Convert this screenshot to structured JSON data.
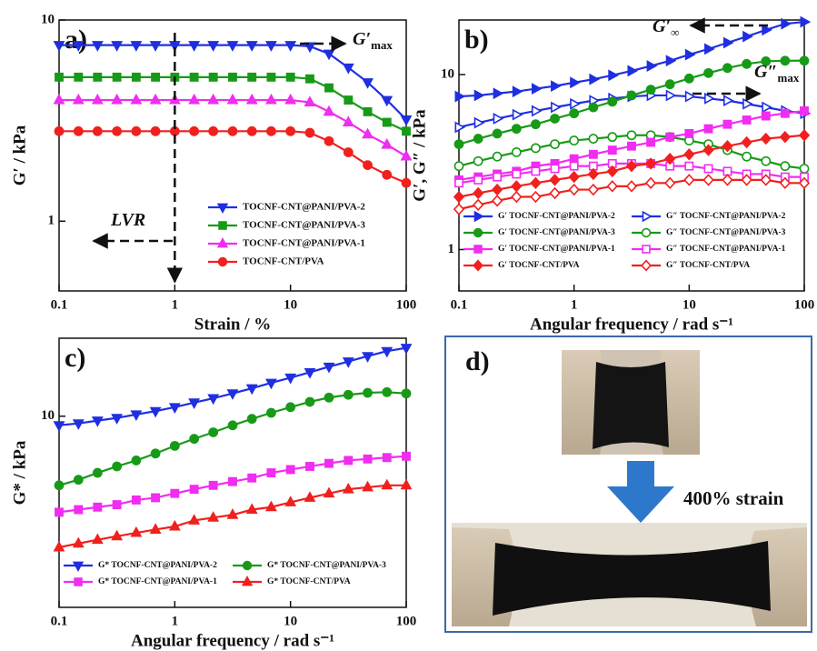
{
  "chart_data": [
    {
      "type": "line",
      "panel_label": "a)",
      "x_label": "Strain / %",
      "y_label": "G′ / kPa",
      "log_x": true,
      "log_y": true,
      "xlim": [
        0.1,
        100
      ],
      "xticks": [
        0.1,
        1,
        10,
        100
      ],
      "ylim": [
        0.45,
        10
      ],
      "yticks": [
        1,
        10
      ],
      "legend": "lower right",
      "legend_columns": 1,
      "x": [
        0.1,
        0.147,
        0.215,
        0.316,
        0.464,
        0.681,
        1,
        1.47,
        2.15,
        3.16,
        4.64,
        6.81,
        10,
        14.7,
        21.5,
        31.6,
        46.4,
        68.1,
        100
      ],
      "annotations": [
        {
          "text": "G′",
          "sub": "max"
        },
        {
          "text": "LVR"
        }
      ],
      "series": [
        {
          "name": "TOCNF-CNT@PANI/PVA-2",
          "color": "#1f2fe0",
          "marker": "triangle-down",
          "filled": true,
          "values": [
            7.5,
            7.5,
            7.5,
            7.5,
            7.5,
            7.5,
            7.5,
            7.5,
            7.5,
            7.5,
            7.5,
            7.5,
            7.5,
            7.4,
            6.8,
            5.8,
            4.9,
            4.0,
            3.2
          ]
        },
        {
          "name": "TOCNF-CNT@PANI/PVA-3",
          "color": "#179a17",
          "marker": "square",
          "filled": true,
          "values": [
            5.2,
            5.2,
            5.2,
            5.2,
            5.2,
            5.2,
            5.2,
            5.2,
            5.2,
            5.2,
            5.2,
            5.2,
            5.2,
            5.1,
            4.6,
            4.0,
            3.5,
            3.1,
            2.8
          ]
        },
        {
          "name": "TOCNF-CNT@PANI/PVA-1",
          "color": "#f02df0",
          "marker": "triangle-up",
          "filled": true,
          "values": [
            4.0,
            4.0,
            4.0,
            4.0,
            4.0,
            4.0,
            4.0,
            4.0,
            4.0,
            4.0,
            4.0,
            4.0,
            4.0,
            3.9,
            3.5,
            3.1,
            2.7,
            2.4,
            2.1
          ]
        },
        {
          "name": "TOCNF-CNT/PVA",
          "color": "#f0201e",
          "marker": "circle",
          "filled": true,
          "values": [
            2.8,
            2.8,
            2.8,
            2.8,
            2.8,
            2.8,
            2.8,
            2.8,
            2.8,
            2.8,
            2.8,
            2.8,
            2.8,
            2.75,
            2.5,
            2.2,
            1.9,
            1.7,
            1.55
          ]
        }
      ]
    },
    {
      "type": "line",
      "panel_label": "b)",
      "x_label": "Angular frequency / rad s⁻¹",
      "y_label": "G′, G″ / kPa",
      "log_x": true,
      "log_y": true,
      "xlim": [
        0.1,
        100
      ],
      "xticks": [
        0.1,
        1,
        10,
        100
      ],
      "ylim": [
        0.58,
        20.5
      ],
      "yticks": [
        1,
        10
      ],
      "legend": "lower center",
      "legend_columns": 2,
      "x": [
        0.1,
        0.147,
        0.215,
        0.316,
        0.464,
        0.681,
        1,
        1.47,
        2.15,
        3.16,
        4.64,
        6.81,
        10,
        14.7,
        21.5,
        31.6,
        46.4,
        68.1,
        100
      ],
      "annotations": [
        {
          "text": "G′",
          "sub": "∞"
        },
        {
          "text": "G″",
          "sub": "max"
        }
      ],
      "series": [
        {
          "name": "G′ TOCNF-CNT@PANI/PVA-2",
          "color": "#1f2fe0",
          "marker": "triangle-right",
          "filled": true,
          "values": [
            7.5,
            7.6,
            7.8,
            8.0,
            8.3,
            8.6,
            9.0,
            9.4,
            9.9,
            10.5,
            11.2,
            12.0,
            13.0,
            14.0,
            15.2,
            16.5,
            18.0,
            19.5,
            20.0
          ]
        },
        {
          "name": "G″ TOCNF-CNT@PANI/PVA-2",
          "color": "#1f2fe0",
          "marker": "triangle-right",
          "filled": false,
          "values": [
            5.0,
            5.3,
            5.6,
            5.9,
            6.2,
            6.5,
            6.8,
            7.1,
            7.3,
            7.5,
            7.6,
            7.6,
            7.5,
            7.3,
            7.1,
            6.8,
            6.5,
            6.2,
            6.0
          ]
        },
        {
          "name": "G′ TOCNF-CNT@PANI/PVA-3",
          "color": "#179a17",
          "marker": "circle",
          "filled": true,
          "values": [
            4.0,
            4.3,
            4.6,
            4.9,
            5.2,
            5.6,
            6.0,
            6.5,
            7.0,
            7.6,
            8.2,
            8.8,
            9.5,
            10.2,
            10.9,
            11.5,
            11.9,
            12.0,
            12.0
          ]
        },
        {
          "name": "G″ TOCNF-CNT@PANI/PVA-3",
          "color": "#179a17",
          "marker": "circle",
          "filled": false,
          "values": [
            3.0,
            3.2,
            3.4,
            3.6,
            3.8,
            4.0,
            4.2,
            4.3,
            4.4,
            4.5,
            4.5,
            4.4,
            4.2,
            4.0,
            3.7,
            3.4,
            3.2,
            3.0,
            2.9
          ]
        },
        {
          "name": "G′ TOCNF-CNT@PANI/PVA-1",
          "color": "#f02df0",
          "marker": "square",
          "filled": true,
          "values": [
            2.5,
            2.6,
            2.7,
            2.8,
            3.0,
            3.1,
            3.3,
            3.5,
            3.7,
            3.9,
            4.1,
            4.4,
            4.6,
            4.9,
            5.2,
            5.5,
            5.8,
            6.0,
            6.2
          ]
        },
        {
          "name": "G″ TOCNF-CNT@PANI/PVA-1",
          "color": "#f02df0",
          "marker": "square",
          "filled": false,
          "values": [
            2.4,
            2.5,
            2.6,
            2.7,
            2.8,
            2.9,
            3.0,
            3.0,
            3.1,
            3.1,
            3.1,
            3.0,
            3.0,
            2.9,
            2.8,
            2.7,
            2.7,
            2.6,
            2.6
          ]
        },
        {
          "name": "G′ TOCNF-CNT/PVA",
          "color": "#f0201e",
          "marker": "diamond",
          "filled": true,
          "values": [
            2.0,
            2.1,
            2.2,
            2.3,
            2.4,
            2.5,
            2.6,
            2.7,
            2.8,
            3.0,
            3.1,
            3.3,
            3.5,
            3.7,
            3.9,
            4.1,
            4.3,
            4.4,
            4.5
          ]
        },
        {
          "name": "G″ TOCNF-CNT/PVA",
          "color": "#f0201e",
          "marker": "diamond",
          "filled": false,
          "values": [
            1.7,
            1.8,
            1.9,
            2.0,
            2.0,
            2.1,
            2.2,
            2.2,
            2.3,
            2.3,
            2.4,
            2.4,
            2.5,
            2.5,
            2.5,
            2.5,
            2.5,
            2.4,
            2.4
          ]
        }
      ]
    },
    {
      "type": "line",
      "panel_label": "c)",
      "x_label": "Angular frequency / rad s⁻¹",
      "y_label": "G* / kPa",
      "log_x": true,
      "log_y": true,
      "xlim": [
        0.1,
        100
      ],
      "xticks": [
        0.1,
        1,
        10,
        100
      ],
      "ylim": [
        1.1,
        24.6
      ],
      "yticks": [
        10
      ],
      "legend": "lower center",
      "legend_columns": 2,
      "x": [
        0.1,
        0.147,
        0.215,
        0.316,
        0.464,
        0.681,
        1,
        1.47,
        2.15,
        3.16,
        4.64,
        6.81,
        10,
        14.7,
        21.5,
        31.6,
        46.4,
        68.1,
        100
      ],
      "annotations": [],
      "series": [
        {
          "name": "G* TOCNF-CNT@PANI/PVA-2",
          "color": "#1f2fe0",
          "marker": "triangle-down",
          "filled": true,
          "values": [
            9.0,
            9.2,
            9.5,
            9.8,
            10.2,
            10.6,
            11.1,
            11.7,
            12.3,
            13.0,
            13.8,
            14.7,
            15.6,
            16.6,
            17.7,
            18.8,
            20.0,
            21.2,
            22.0
          ]
        },
        {
          "name": "G* TOCNF-CNT@PANI/PVA-3",
          "color": "#179a17",
          "marker": "circle",
          "filled": true,
          "values": [
            4.5,
            4.8,
            5.2,
            5.6,
            6.0,
            6.5,
            7.1,
            7.7,
            8.3,
            9.0,
            9.7,
            10.4,
            11.1,
            11.8,
            12.4,
            12.8,
            13.1,
            13.2,
            13.0
          ]
        },
        {
          "name": "G* TOCNF-CNT@PANI/PVA-1",
          "color": "#f02df0",
          "marker": "square",
          "filled": true,
          "values": [
            3.3,
            3.4,
            3.5,
            3.6,
            3.8,
            3.9,
            4.1,
            4.3,
            4.5,
            4.7,
            4.9,
            5.2,
            5.4,
            5.6,
            5.8,
            6.0,
            6.1,
            6.2,
            6.3
          ]
        },
        {
          "name": "G* TOCNF-CNT/PVA",
          "color": "#f0201e",
          "marker": "triangle-up",
          "filled": true,
          "values": [
            2.2,
            2.3,
            2.4,
            2.5,
            2.6,
            2.7,
            2.8,
            3.0,
            3.1,
            3.2,
            3.4,
            3.5,
            3.7,
            3.9,
            4.1,
            4.3,
            4.4,
            4.5,
            4.5
          ]
        }
      ]
    }
  ],
  "photo_panel": {
    "label": "d)",
    "caption": "400% strain"
  }
}
